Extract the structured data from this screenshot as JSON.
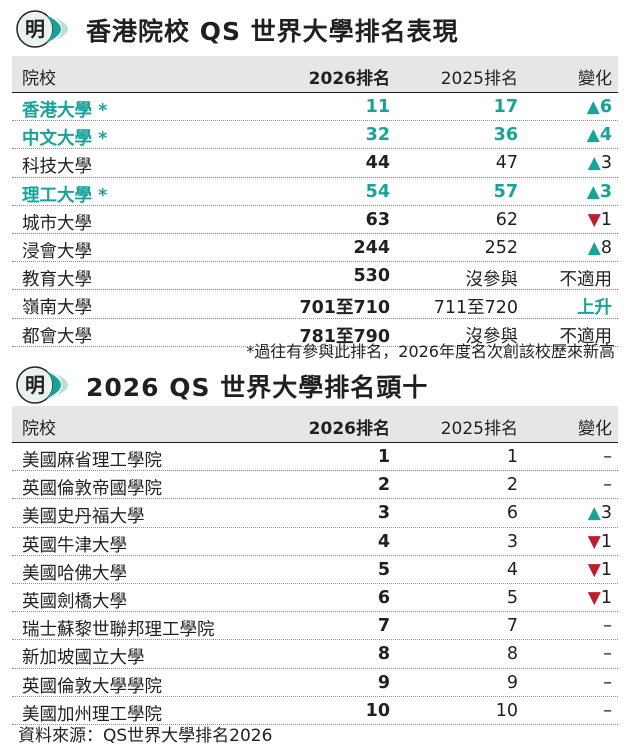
{
  "logo_char": "明",
  "colors": {
    "accent": "#17a39a",
    "down": "#be1e2d",
    "header_bg": "#e6e6e6"
  },
  "section1": {
    "title": "香港院校 QS 世界大學排名表現",
    "headers": {
      "name": "院校",
      "r2026": "2026排名",
      "r2025": "2025排名",
      "chg": "變化"
    }
  },
  "section2": {
    "title": "2026 QS 世界大學排名頭十",
    "headers": {
      "name": "院校",
      "r2026": "2026排名",
      "r2025": "2025排名",
      "chg": "變化"
    }
  },
  "note": "*過往有參與此排名，2026年度名次創該校歷來新高",
  "source": "資料來源：QS世界大學排名2026",
  "chart_data": [
    {
      "type": "table",
      "title": "香港院校 QS 世界大學排名表現",
      "columns": [
        "院校",
        "2026排名",
        "2025排名",
        "變化"
      ],
      "rows": [
        {
          "name": "香港大學 *",
          "r2026": "11",
          "r2025": "17",
          "dir": "up",
          "chg": "6",
          "highlight": true
        },
        {
          "name": "中文大學 *",
          "r2026": "32",
          "r2025": "36",
          "dir": "up",
          "chg": "4",
          "highlight": true
        },
        {
          "name": "科技大學",
          "r2026": "44",
          "r2025": "47",
          "dir": "up",
          "chg": "3",
          "highlight": false
        },
        {
          "name": "理工大學 *",
          "r2026": "54",
          "r2025": "57",
          "dir": "up",
          "chg": "3",
          "highlight": true
        },
        {
          "name": "城市大學",
          "r2026": "63",
          "r2025": "62",
          "dir": "down",
          "chg": "1",
          "highlight": false
        },
        {
          "name": "浸會大學",
          "r2026": "244",
          "r2025": "252",
          "dir": "up",
          "chg": "8",
          "highlight": false
        },
        {
          "name": "教育大學",
          "r2026": "530",
          "r2025": "沒參與",
          "dir": "none",
          "chg": "不適用",
          "highlight": false
        },
        {
          "name": "嶺南大學",
          "r2026": "701至710",
          "r2025": "711至720",
          "dir": "text-up",
          "chg": "上升",
          "highlight": false
        },
        {
          "name": "都會大學",
          "r2026": "781至790",
          "r2025": "沒參與",
          "dir": "none",
          "chg": "不適用",
          "highlight": false
        }
      ]
    },
    {
      "type": "table",
      "title": "2026 QS 世界大學排名頭十",
      "columns": [
        "院校",
        "2026排名",
        "2025排名",
        "變化"
      ],
      "rows": [
        {
          "name": "美國麻省理工學院",
          "r2026": "1",
          "r2025": "1",
          "dir": "dash",
          "chg": "–"
        },
        {
          "name": "英國倫敦帝國學院",
          "r2026": "2",
          "r2025": "2",
          "dir": "dash",
          "chg": "–"
        },
        {
          "name": "美國史丹福大學",
          "r2026": "3",
          "r2025": "6",
          "dir": "up",
          "chg": "3"
        },
        {
          "name": "英國牛津大學",
          "r2026": "4",
          "r2025": "3",
          "dir": "down",
          "chg": "1"
        },
        {
          "name": "美國哈佛大學",
          "r2026": "5",
          "r2025": "4",
          "dir": "down",
          "chg": "1"
        },
        {
          "name": "英國劍橋大學",
          "r2026": "6",
          "r2025": "5",
          "dir": "down",
          "chg": "1"
        },
        {
          "name": "瑞士蘇黎世聯邦理工學院",
          "r2026": "7",
          "r2025": "7",
          "dir": "dash",
          "chg": "–"
        },
        {
          "name": "新加坡國立大學",
          "r2026": "8",
          "r2025": "8",
          "dir": "dash",
          "chg": "–"
        },
        {
          "name": "英國倫敦大學學院",
          "r2026": "9",
          "r2025": "9",
          "dir": "dash",
          "chg": "–"
        },
        {
          "name": "美國加州理工學院",
          "r2026": "10",
          "r2025": "10",
          "dir": "dash",
          "chg": "–"
        }
      ]
    }
  ]
}
